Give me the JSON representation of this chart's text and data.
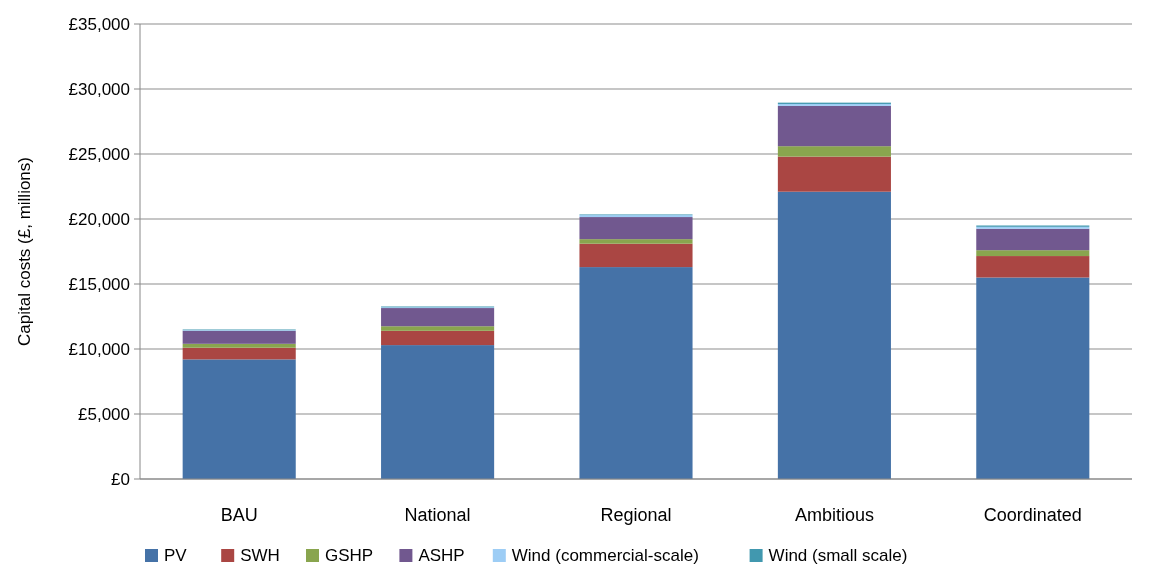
{
  "chart_data": {
    "type": "bar",
    "stacked": true,
    "ylabel": "Capital costs (£, millions)",
    "categories": [
      "BAU",
      "National",
      "Regional",
      "Ambitious",
      "Coordinated"
    ],
    "series": [
      {
        "name": "PV",
        "color": "#4572a7",
        "values": [
          9200,
          10300,
          16300,
          22100,
          15500
        ]
      },
      {
        "name": "SWH",
        "color": "#aa4643",
        "values": [
          900,
          1100,
          1800,
          2700,
          1650
        ]
      },
      {
        "name": "GSHP",
        "color": "#89a54e",
        "values": [
          300,
          350,
          350,
          800,
          450
        ]
      },
      {
        "name": "ASHP",
        "color": "#71588f",
        "values": [
          1000,
          1400,
          1700,
          3100,
          1650
        ]
      },
      {
        "name": "Wind (commercial-scale)",
        "color": "#9dcdf5",
        "values": [
          50,
          60,
          150,
          150,
          150
        ]
      },
      {
        "name": "Wind (small scale)",
        "color": "#4198af",
        "values": [
          50,
          60,
          50,
          100,
          100
        ]
      }
    ],
    "ylim": [
      0,
      35000
    ],
    "yticks": [
      {
        "value": 0,
        "label": "£0"
      },
      {
        "value": 5000,
        "label": "£5,000"
      },
      {
        "value": 10000,
        "label": "£10,000"
      },
      {
        "value": 15000,
        "label": "£15,000"
      },
      {
        "value": 20000,
        "label": "£20,000"
      },
      {
        "value": 25000,
        "label": "£25,000"
      },
      {
        "value": 30000,
        "label": "£30,000"
      },
      {
        "value": 35000,
        "label": "£35,000"
      }
    ],
    "grid": "y",
    "legend": "bottom"
  }
}
